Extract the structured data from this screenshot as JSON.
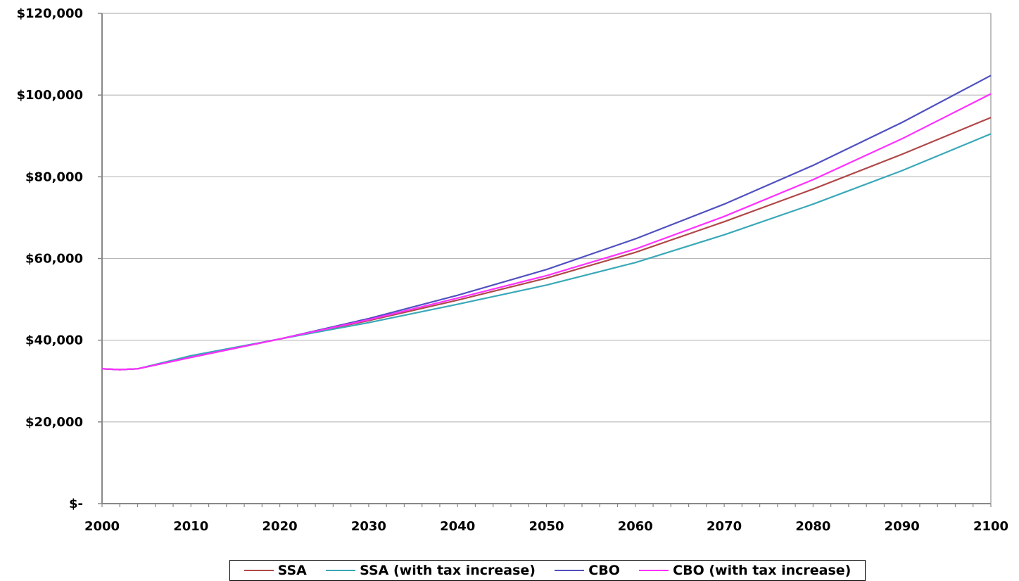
{
  "chart_data": {
    "type": "line",
    "title": "",
    "xlabel": "",
    "ylabel": "",
    "xlim": [
      2000,
      2100
    ],
    "ylim": [
      0,
      120000
    ],
    "x_ticks": [
      2000,
      2010,
      2020,
      2030,
      2040,
      2050,
      2060,
      2070,
      2080,
      2090,
      2100
    ],
    "x_tick_labels": [
      "2000",
      "2010",
      "2020",
      "2030",
      "2040",
      "2050",
      "2060",
      "2070",
      "2080",
      "2090",
      "2100"
    ],
    "y_ticks": [
      0,
      20000,
      40000,
      60000,
      80000,
      100000,
      120000
    ],
    "y_tick_labels": [
      "$-",
      "$20,000",
      "$40,000",
      "$60,000",
      "$80,000",
      "$100,000",
      "$120,000"
    ],
    "grid": "horizontal",
    "legend_position": "bottom",
    "x": [
      2000,
      2002,
      2004,
      2010,
      2020,
      2030,
      2040,
      2050,
      2060,
      2070,
      2080,
      2090,
      2100
    ],
    "series": [
      {
        "name": "SSA",
        "color": "#b04848",
        "values": [
          33000,
          32800,
          33000,
          35800,
          40300,
          44800,
          49800,
          55200,
          61500,
          69000,
          77000,
          85500,
          94500
        ]
      },
      {
        "name": "SSA (with tax increase)",
        "color": "#3aa8b8",
        "values": [
          33000,
          32800,
          33000,
          36200,
          40300,
          44300,
          48800,
          53500,
          59000,
          65800,
          73300,
          81500,
          90500
        ]
      },
      {
        "name": "CBO",
        "color": "#5050c0",
        "values": [
          33000,
          32800,
          33000,
          35800,
          40300,
          45300,
          51000,
          57300,
          64800,
          73300,
          82800,
          93300,
          104800
        ]
      },
      {
        "name": "CBO (with tax increase)",
        "color": "#ff30ff",
        "values": [
          33000,
          32800,
          33000,
          35800,
          40300,
          45000,
          50300,
          55800,
          62300,
          70300,
          79300,
          89300,
          100300
        ]
      }
    ]
  }
}
